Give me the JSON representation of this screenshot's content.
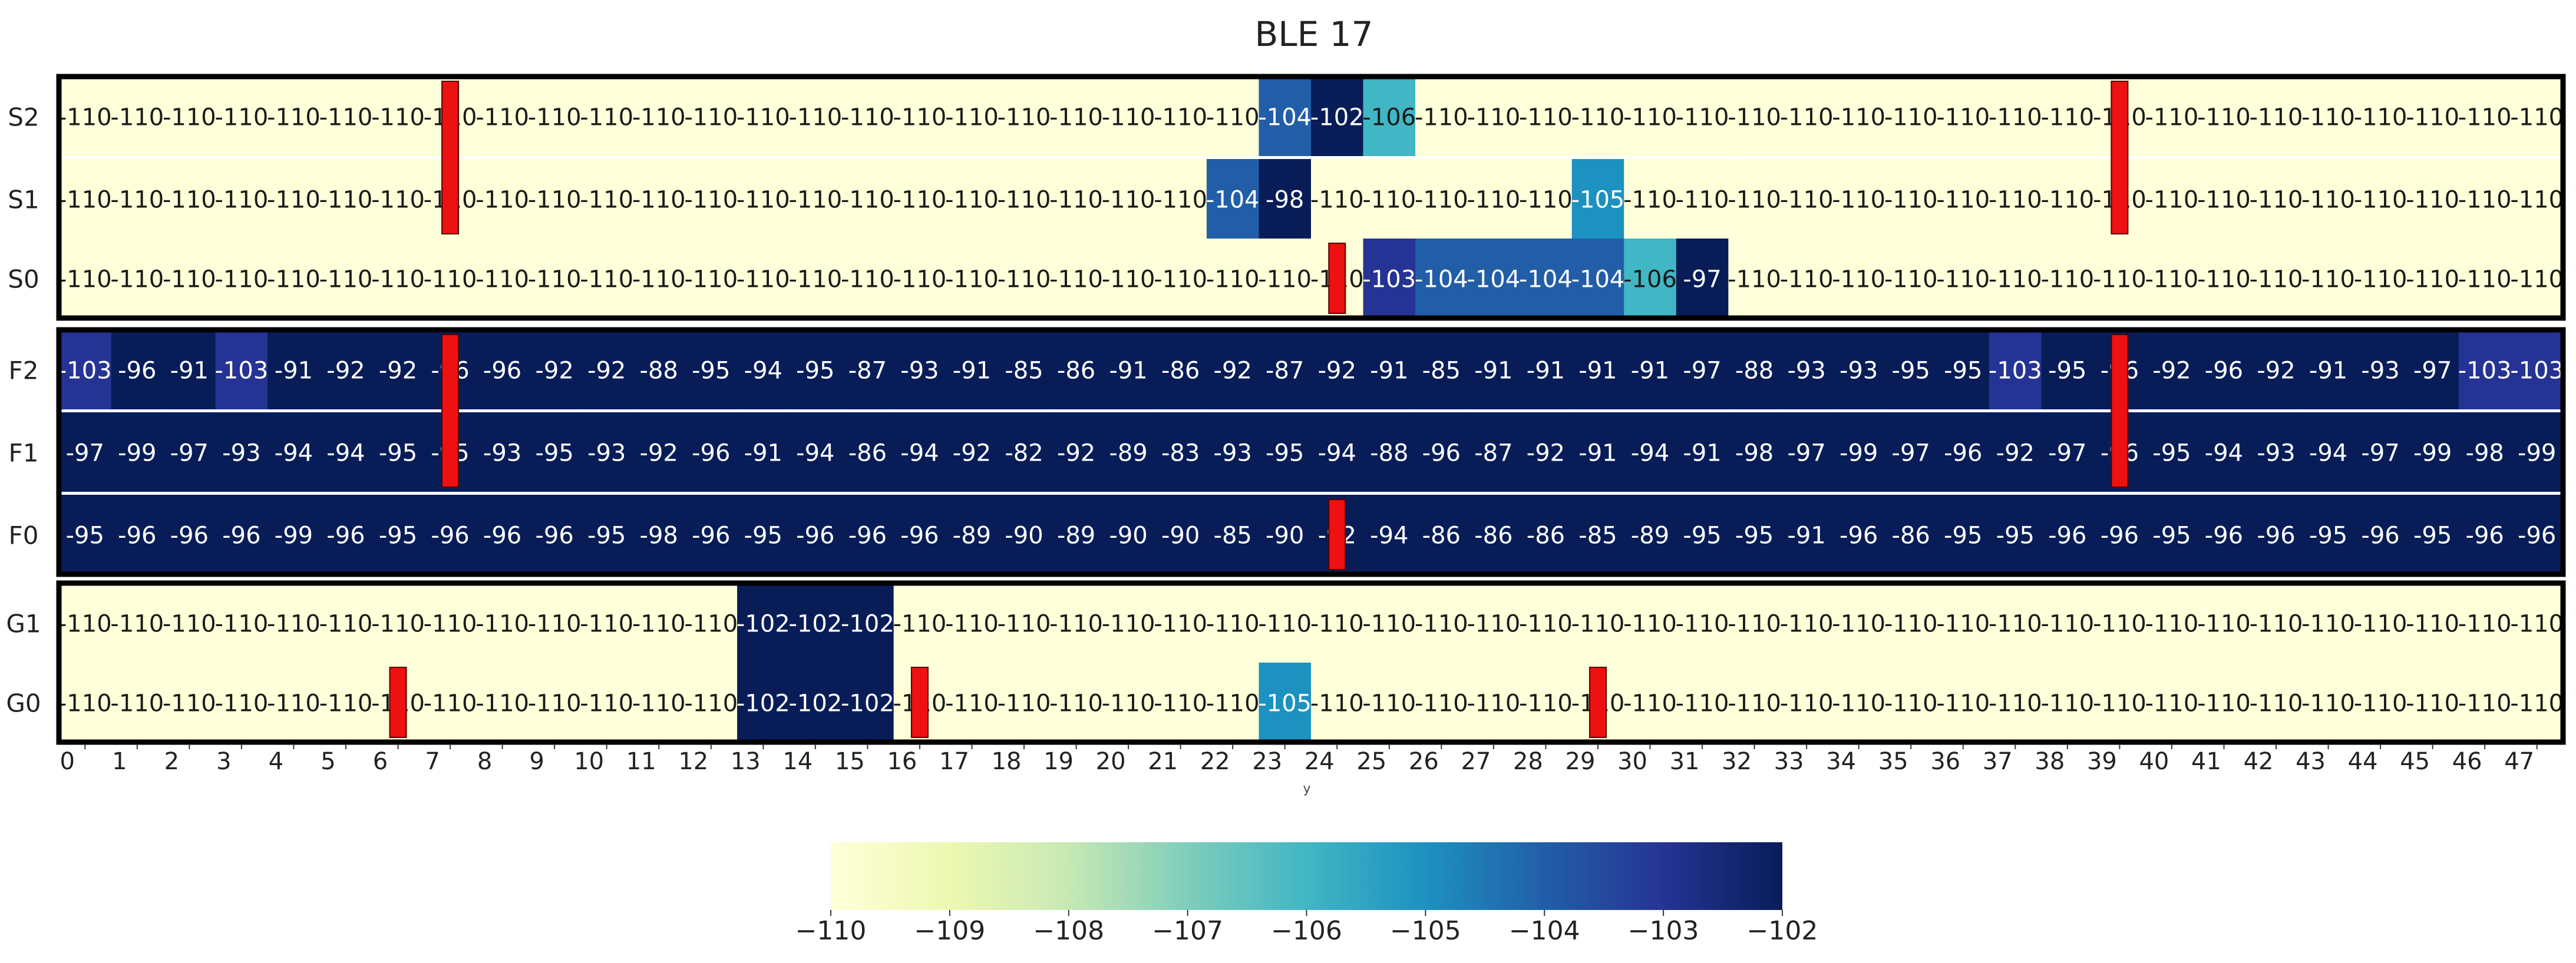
{
  "chart_data": {
    "type": "heatmap",
    "title": "BLE 17",
    "xlabel": "y",
    "x_ticks": [
      "0",
      "1",
      "2",
      "3",
      "4",
      "5",
      "6",
      "7",
      "8",
      "9",
      "10",
      "11",
      "12",
      "13",
      "14",
      "15",
      "16",
      "17",
      "18",
      "19",
      "20",
      "21",
      "22",
      "23",
      "24",
      "25",
      "26",
      "27",
      "28",
      "29",
      "30",
      "31",
      "32",
      "33",
      "34",
      "35",
      "36",
      "37",
      "38",
      "39",
      "40",
      "41",
      "42",
      "43",
      "44",
      "45",
      "46",
      "47"
    ],
    "y_ticks": [
      "S2",
      "S1",
      "S0",
      "F2",
      "F1",
      "F0",
      "G1",
      "G0"
    ],
    "cell_values": {
      "S2": [
        "-110",
        "-110",
        "-110",
        "-110",
        "-110",
        "-110",
        "-110",
        "-110",
        "-110",
        "-110",
        "-110",
        "-110",
        "-110",
        "-110",
        "-110",
        "-110",
        "-110",
        "-110",
        "-110",
        "-110",
        "-110",
        "-110",
        "-110",
        "-104",
        "-102",
        "-106",
        "-110",
        "-110",
        "-110",
        "-110",
        "-110",
        "-110",
        "-110",
        "-110",
        "-110",
        "-110",
        "-110",
        "-110",
        "-110",
        "-110",
        "-110",
        "-110",
        "-110",
        "-110",
        "-110",
        "-110",
        "-110",
        "-110"
      ],
      "S1": [
        "-110",
        "-110",
        "-110",
        "-110",
        "-110",
        "-110",
        "-110",
        "-110",
        "-110",
        "-110",
        "-110",
        "-110",
        "-110",
        "-110",
        "-110",
        "-110",
        "-110",
        "-110",
        "-110",
        "-110",
        "-110",
        "-110",
        "-104",
        "-98",
        "-110",
        "-110",
        "-110",
        "-110",
        "-110",
        "-105",
        "-110",
        "-110",
        "-110",
        "-110",
        "-110",
        "-110",
        "-110",
        "-110",
        "-110",
        "-110",
        "-110",
        "-110",
        "-110",
        "-110",
        "-110",
        "-110",
        "-110",
        "-110"
      ],
      "S0": [
        "-110",
        "-110",
        "-110",
        "-110",
        "-110",
        "-110",
        "-110",
        "-110",
        "-110",
        "-110",
        "-110",
        "-110",
        "-110",
        "-110",
        "-110",
        "-110",
        "-110",
        "-110",
        "-110",
        "-110",
        "-110",
        "-110",
        "-110",
        "-110",
        "-110",
        "-103",
        "-104",
        "-104",
        "-104",
        "-104",
        "-106",
        "-97",
        "-110",
        "-110",
        "-110",
        "-110",
        "-110",
        "-110",
        "-110",
        "-110",
        "-110",
        "-110",
        "-110",
        "-110",
        "-110",
        "-110",
        "-110",
        "-110"
      ],
      "F2": [
        "-103",
        "-96",
        "-91",
        "-103",
        "-91",
        "-92",
        "-92",
        "-96",
        "-96",
        "-92",
        "-92",
        "-88",
        "-95",
        "-94",
        "-95",
        "-87",
        "-93",
        "-91",
        "-85",
        "-86",
        "-91",
        "-86",
        "-92",
        "-87",
        "-92",
        "-91",
        "-85",
        "-91",
        "-91",
        "-91",
        "-91",
        "-97",
        "-88",
        "-93",
        "-93",
        "-95",
        "-95",
        "-103",
        "-95",
        "-96",
        "-92",
        "-96",
        "-92",
        "-91",
        "-93",
        "-97",
        "-103",
        "-103"
      ],
      "F1": [
        "-97",
        "-99",
        "-97",
        "-93",
        "-94",
        "-94",
        "-95",
        "-95",
        "-93",
        "-95",
        "-93",
        "-92",
        "-96",
        "-91",
        "-94",
        "-86",
        "-94",
        "-92",
        "-82",
        "-92",
        "-89",
        "-83",
        "-93",
        "-95",
        "-94",
        "-88",
        "-96",
        "-87",
        "-92",
        "-91",
        "-94",
        "-91",
        "-98",
        "-97",
        "-99",
        "-97",
        "-96",
        "-92",
        "-97",
        "-96",
        "-95",
        "-94",
        "-93",
        "-94",
        "-97",
        "-99",
        "-98",
        "-99"
      ],
      "F0": [
        "-95",
        "-96",
        "-96",
        "-96",
        "-99",
        "-96",
        "-95",
        "-96",
        "-96",
        "-96",
        "-95",
        "-98",
        "-96",
        "-95",
        "-96",
        "-96",
        "-96",
        "-89",
        "-90",
        "-89",
        "-90",
        "-90",
        "-85",
        "-90",
        "-92",
        "-94",
        "-86",
        "-86",
        "-86",
        "-85",
        "-89",
        "-95",
        "-95",
        "-91",
        "-96",
        "-86",
        "-95",
        "-95",
        "-96",
        "-96",
        "-95",
        "-96",
        "-96",
        "-95",
        "-96",
        "-95",
        "-96",
        "-96"
      ],
      "G1": [
        "-110",
        "-110",
        "-110",
        "-110",
        "-110",
        "-110",
        "-110",
        "-110",
        "-110",
        "-110",
        "-110",
        "-110",
        "-110",
        "-102",
        "-102",
        "-102",
        "-110",
        "-110",
        "-110",
        "-110",
        "-110",
        "-110",
        "-110",
        "-110",
        "-110",
        "-110",
        "-110",
        "-110",
        "-110",
        "-110",
        "-110",
        "-110",
        "-110",
        "-110",
        "-110",
        "-110",
        "-110",
        "-110",
        "-110",
        "-110",
        "-110",
        "-110",
        "-110",
        "-110",
        "-110",
        "-110",
        "-110",
        "-110"
      ],
      "G0": [
        "-110",
        "-110",
        "-110",
        "-110",
        "-110",
        "-110",
        "-110",
        "-110",
        "-110",
        "-110",
        "-110",
        "-110",
        "-110",
        "-102",
        "-102",
        "-102",
        "-110",
        "-110",
        "-110",
        "-110",
        "-110",
        "-110",
        "-110",
        "-105",
        "-110",
        "-110",
        "-110",
        "-110",
        "-110",
        "-110",
        "-110",
        "-110",
        "-110",
        "-110",
        "-110",
        "-110",
        "-110",
        "-110",
        "-110",
        "-110",
        "-110",
        "-110",
        "-110",
        "-110",
        "-110",
        "-110",
        "-110",
        "-110"
      ]
    },
    "color_scale": {
      "vmin": -110,
      "vmax": -102,
      "ticks": [
        "−110",
        "−109",
        "−108",
        "−107",
        "−106",
        "−105",
        "−104",
        "−103",
        "−102"
      ],
      "colormap": "YlGnBu",
      "stops": [
        "#ffffd9",
        "#edf8b1",
        "#c7e9b4",
        "#7fcdbb",
        "#41b6c4",
        "#1d91c0",
        "#225ea8",
        "#253494",
        "#081d58"
      ]
    },
    "row_groups": [
      [
        "S2",
        "S1",
        "S0"
      ],
      [
        "F2",
        "F1",
        "F0"
      ],
      [
        "G1",
        "G0"
      ]
    ],
    "markers": [
      {
        "x": 7,
        "rows": [
          "S2",
          "S1"
        ]
      },
      {
        "x": 39,
        "rows": [
          "S2",
          "S1"
        ]
      },
      {
        "x": 24,
        "rows": [
          "S0"
        ]
      },
      {
        "x": 7,
        "rows": [
          "F2",
          "F1"
        ]
      },
      {
        "x": 39,
        "rows": [
          "F2",
          "F1"
        ]
      },
      {
        "x": 24,
        "rows": [
          "F0"
        ]
      },
      {
        "x": 6,
        "rows": [
          "G0"
        ]
      },
      {
        "x": 16,
        "rows": [
          "G0"
        ]
      },
      {
        "x": 29,
        "rows": [
          "G0"
        ]
      }
    ],
    "marker_color": "#ee1111",
    "grid": false
  }
}
